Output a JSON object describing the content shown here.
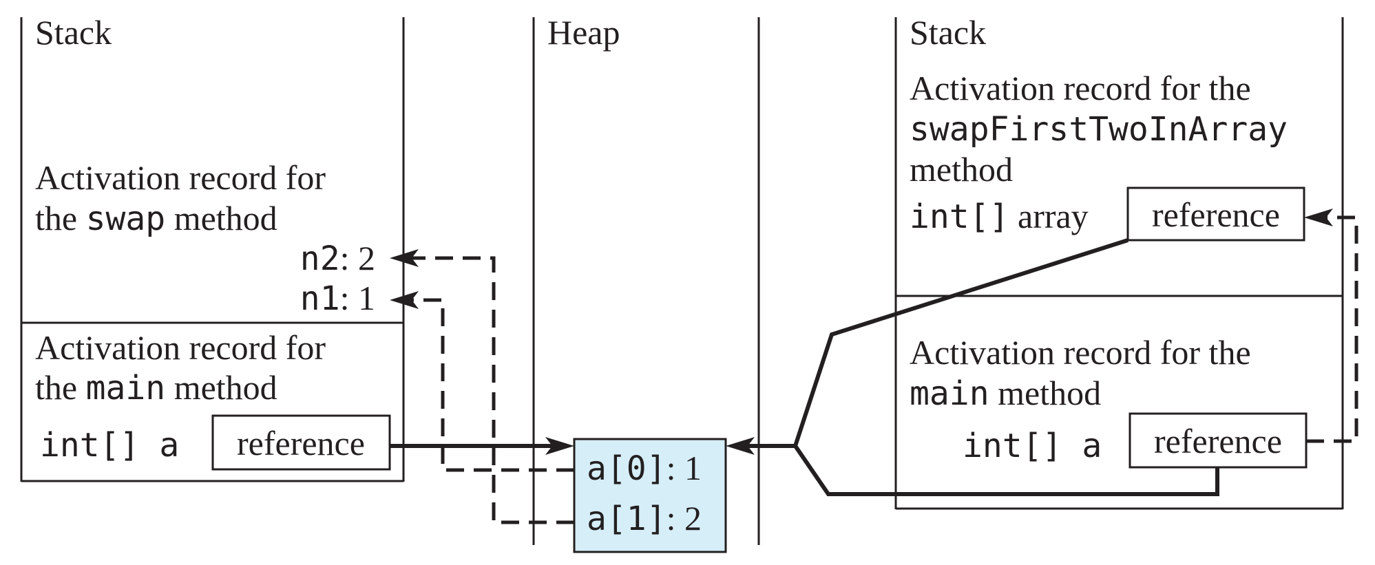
{
  "colors": {
    "ink": "#231f20",
    "heap_cell_fill": "#d6eef8",
    "background": "#ffffff"
  },
  "left_stack": {
    "label": "Stack",
    "swap_record": {
      "line1": "Activation record for",
      "line2_pre": "the ",
      "line2_code": "swap",
      "line2_post": " method",
      "n2_name": "n2",
      "n2_value": ": 2",
      "n1_name": "n1",
      "n1_value": ": 1"
    },
    "main_record": {
      "line1": "Activation record for",
      "line2_pre": "the ",
      "line2_code": "main",
      "line2_post": " method",
      "var_decl": "int[] a",
      "var_value": "reference"
    }
  },
  "heap": {
    "label": "Heap",
    "cells": [
      {
        "name": "a[0]",
        "value": ": 1"
      },
      {
        "name": "a[1]",
        "value": ": 2"
      }
    ]
  },
  "right_stack": {
    "label": "Stack",
    "swap_record": {
      "line1": "Activation record for the",
      "line2_code": "swapFirstTwoInArray",
      "line3": "method",
      "var_decl": "int[]",
      "var_name": " array",
      "var_value": "reference"
    },
    "main_record": {
      "line1": "Activation record for the",
      "line2_code": "main",
      "line2_post": " method",
      "var_decl": "int[] a",
      "var_value": "reference"
    }
  }
}
